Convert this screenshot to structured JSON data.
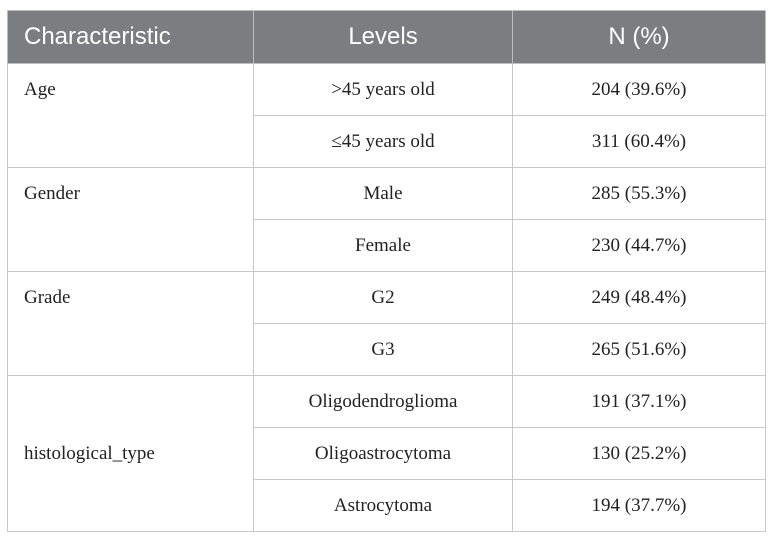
{
  "table": {
    "headers": [
      "Characteristic",
      "Levels",
      "N (%)"
    ],
    "groups": [
      {
        "characteristic": "Age",
        "rows": [
          {
            "level": ">45 years old",
            "n": "204 (39.6%)"
          },
          {
            "level": "≤45 years old",
            "n": "311 (60.4%)"
          }
        ]
      },
      {
        "characteristic": "Gender",
        "rows": [
          {
            "level": "Male",
            "n": "285 (55.3%)"
          },
          {
            "level": "Female",
            "n": "230 (44.7%)"
          }
        ]
      },
      {
        "characteristic": "Grade",
        "rows": [
          {
            "level": "G2",
            "n": "249 (48.4%)"
          },
          {
            "level": "G3",
            "n": "265 (51.6%)"
          }
        ]
      },
      {
        "characteristic": "histological_type",
        "rows": [
          {
            "level": "Oligodendroglioma",
            "n": "191 (37.1%)"
          },
          {
            "level": "Oligoastrocytoma",
            "n": "130 (25.2%)"
          },
          {
            "level": "Astrocytoma",
            "n": "194 (37.7%)"
          }
        ]
      }
    ]
  }
}
